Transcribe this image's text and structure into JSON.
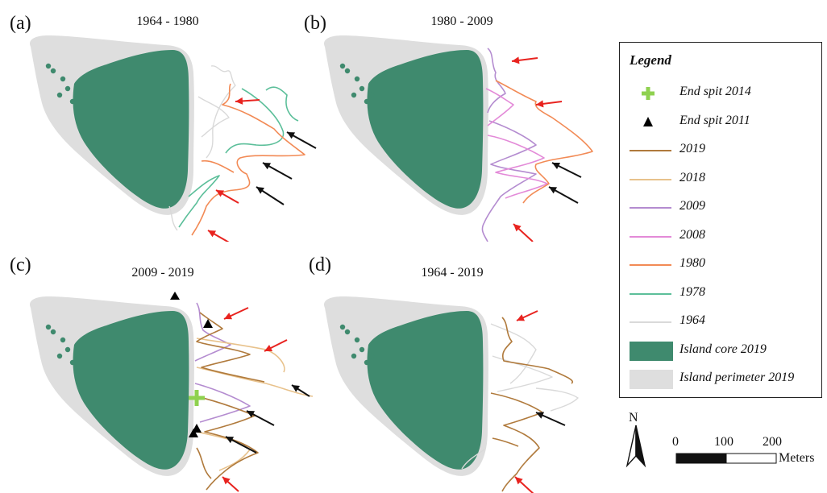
{
  "panels": [
    {
      "letter": "(a)",
      "title": "1964 - 1980",
      "lines": [
        "1964",
        "1978",
        "1980"
      ]
    },
    {
      "letter": "(b)",
      "title": "1980 - 2009",
      "lines": [
        "1980",
        "2008",
        "2009"
      ]
    },
    {
      "letter": "(c)",
      "title": "2009 - 2019",
      "lines": [
        "2009",
        "2018",
        "2019"
      ]
    },
    {
      "letter": "(d)",
      "title": "1964 - 2019",
      "lines": [
        "1964",
        "2019"
      ]
    }
  ],
  "legend": {
    "title": "Legend",
    "items": [
      {
        "label": "End spit 2014",
        "symbol": "plus-icon",
        "color": "#8fd14f"
      },
      {
        "label": "End spit 2011",
        "symbol": "triangle-icon",
        "color": "#000000"
      },
      {
        "label": "2019",
        "symbol": "line",
        "color": "#b07a3c"
      },
      {
        "label": "2018",
        "symbol": "line",
        "color": "#e8c28c"
      },
      {
        "label": "2009",
        "symbol": "line",
        "color": "#b48cd0"
      },
      {
        "label": "2008",
        "symbol": "line",
        "color": "#e38ad8"
      },
      {
        "label": "1980",
        "symbol": "line",
        "color": "#f28a55"
      },
      {
        "label": "1978",
        "symbol": "line",
        "color": "#5cbf9a"
      },
      {
        "label": "1964",
        "symbol": "line",
        "color": "#d9d9d9"
      },
      {
        "label": "Island core 2019",
        "symbol": "fill",
        "color": "#3f8a6e"
      },
      {
        "label": "Island perimeter 2019",
        "symbol": "fill",
        "color": "#dedede"
      }
    ]
  },
  "north": {
    "label": "N"
  },
  "scale": {
    "ticks": [
      "0",
      "100",
      "200"
    ],
    "unit": "Meters"
  },
  "colors": {
    "arrow_red": "#e8231f",
    "arrow_black": "#111111"
  }
}
